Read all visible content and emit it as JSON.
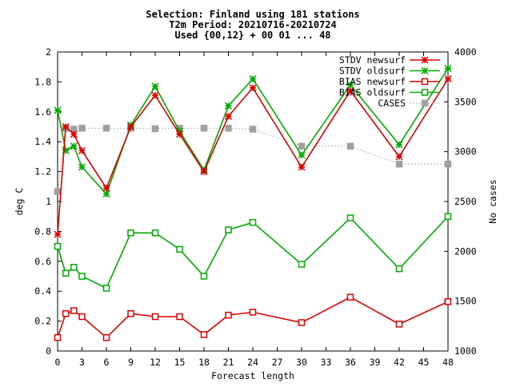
{
  "chart_data": {
    "type": "line",
    "title_lines": [
      "Selection: Finland using   181 stations",
      "T2m   Period: 20210716-20210724",
      "Used {00,12} + 00 01 ... 48"
    ],
    "xlabel": "Forecast length",
    "ylabel": "deg C",
    "y2label": "No cases",
    "xlim": [
      0,
      48
    ],
    "ylim": [
      0,
      2
    ],
    "y2lim": [
      1000,
      4000
    ],
    "xticks": [
      "0",
      "3",
      "6",
      "9",
      "12",
      "15",
      "18",
      "21",
      "24",
      "27",
      "30",
      "33",
      "36",
      "39",
      "42",
      "45",
      "48"
    ],
    "yticks": [
      "0",
      "0.2",
      "0.4",
      "0.6",
      "0.8",
      "1",
      "1.2",
      "1.4",
      "1.6",
      "1.8",
      "2"
    ],
    "y2ticks": [
      "1000",
      "1500",
      "2000",
      "2500",
      "3000",
      "3500",
      "4000"
    ],
    "legend_position": "top-right",
    "x": [
      0,
      1,
      2,
      3,
      6,
      9,
      12,
      15,
      18,
      21,
      24,
      30,
      36,
      42,
      48
    ],
    "series": [
      {
        "name": "STDV newsurf",
        "color": "#dd0000",
        "marker": "star",
        "axis": "left",
        "values": [
          0.78,
          1.5,
          1.45,
          1.34,
          1.09,
          1.5,
          1.71,
          1.45,
          1.2,
          1.57,
          1.76,
          1.23,
          1.74,
          1.3,
          1.82
        ]
      },
      {
        "name": "STDV oldsurf",
        "color": "#00aa00",
        "marker": "star",
        "axis": "left",
        "values": [
          1.61,
          1.34,
          1.37,
          1.23,
          1.05,
          1.51,
          1.77,
          1.47,
          1.21,
          1.64,
          1.82,
          1.31,
          1.78,
          1.38,
          1.89
        ]
      },
      {
        "name": "BIAS newsurf",
        "color": "#dd0000",
        "marker": "square",
        "axis": "left",
        "values": [
          0.09,
          0.25,
          0.27,
          0.23,
          0.09,
          0.25,
          0.23,
          0.23,
          0.11,
          0.24,
          0.26,
          0.19,
          0.36,
          0.18,
          0.33
        ]
      },
      {
        "name": "BIAS oldsurf",
        "color": "#00aa00",
        "marker": "square",
        "axis": "left",
        "values": [
          0.7,
          0.52,
          0.56,
          0.5,
          0.42,
          0.79,
          0.79,
          0.68,
          0.5,
          0.81,
          0.86,
          0.58,
          0.89,
          0.55,
          0.9
        ]
      },
      {
        "name": "CASES",
        "color": "#a0a0a0",
        "marker": "filled-square",
        "axis": "right",
        "values": [
          2600,
          3235,
          3225,
          3235,
          3235,
          3235,
          3230,
          3235,
          3235,
          3235,
          3225,
          3055,
          3055,
          2875,
          2875
        ]
      }
    ]
  }
}
